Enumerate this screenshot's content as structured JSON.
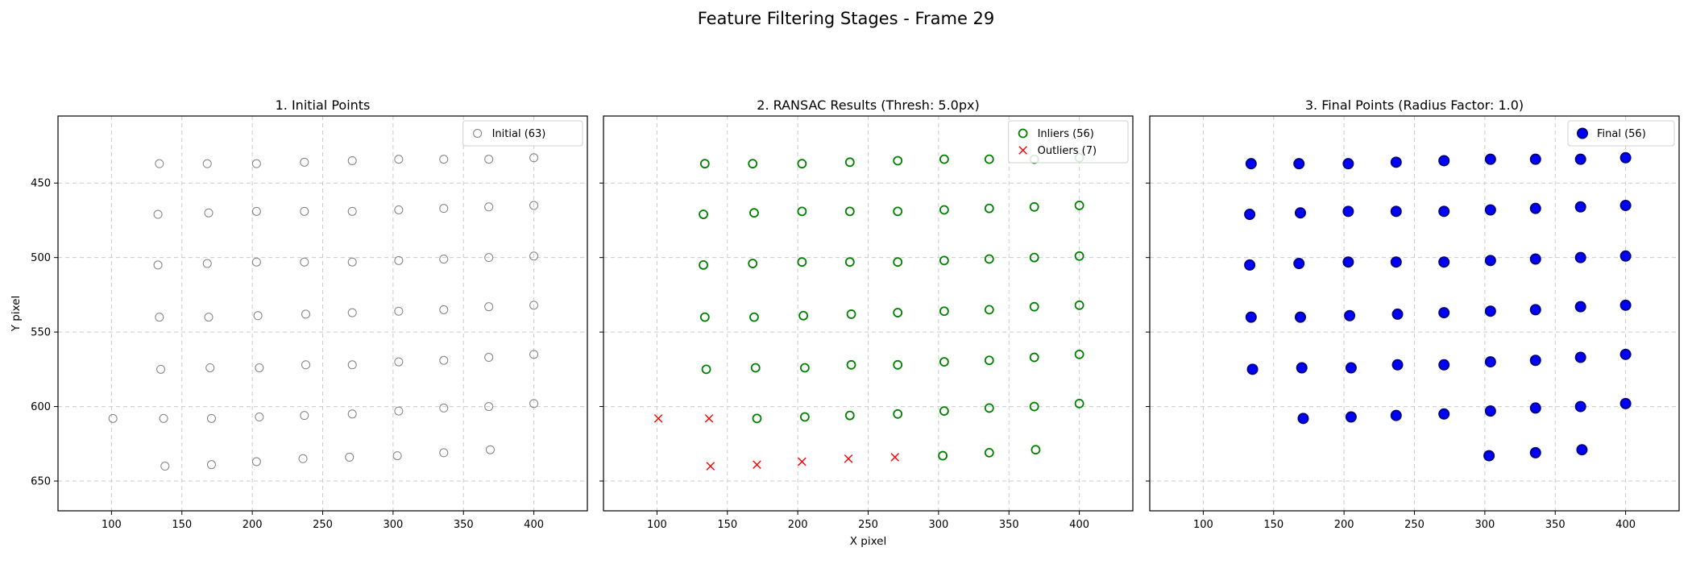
{
  "figure": {
    "title": "Feature Filtering Stages - Frame 29",
    "ylabel": "Y pixel",
    "xlabel": "X pixel"
  },
  "chart_data": [
    {
      "type": "scatter",
      "title": "1. Initial Points",
      "xlim": [
        62,
        438
      ],
      "ylim": [
        670,
        405
      ],
      "y_inverted": true,
      "grid": true,
      "xticks": [
        100,
        150,
        200,
        250,
        300,
        350,
        400
      ],
      "yticks": [
        450,
        500,
        550,
        600,
        650
      ],
      "show_yticklabels": true,
      "ylabel": "Y pixel",
      "xlabel": "",
      "legend_position": "top-right",
      "series": [
        {
          "name": "Initial (63)",
          "marker": "hollow-circle",
          "color": "#808080",
          "points": [
            [
              134,
              437
            ],
            [
              168,
              437
            ],
            [
              203,
              437
            ],
            [
              237,
              436
            ],
            [
              271,
              435
            ],
            [
              304,
              434
            ],
            [
              336,
              434
            ],
            [
              368,
              434
            ],
            [
              400,
              433
            ],
            [
              133,
              471
            ],
            [
              169,
              470
            ],
            [
              203,
              469
            ],
            [
              237,
              469
            ],
            [
              271,
              469
            ],
            [
              304,
              468
            ],
            [
              336,
              467
            ],
            [
              368,
              466
            ],
            [
              400,
              465
            ],
            [
              133,
              505
            ],
            [
              168,
              504
            ],
            [
              203,
              503
            ],
            [
              237,
              503
            ],
            [
              271,
              503
            ],
            [
              304,
              502
            ],
            [
              336,
              501
            ],
            [
              368,
              500
            ],
            [
              400,
              499
            ],
            [
              134,
              540
            ],
            [
              169,
              540
            ],
            [
              204,
              539
            ],
            [
              238,
              538
            ],
            [
              271,
              537
            ],
            [
              304,
              536
            ],
            [
              336,
              535
            ],
            [
              368,
              533
            ],
            [
              400,
              532
            ],
            [
              135,
              575
            ],
            [
              170,
              574
            ],
            [
              205,
              574
            ],
            [
              238,
              572
            ],
            [
              271,
              572
            ],
            [
              304,
              570
            ],
            [
              336,
              569
            ],
            [
              368,
              567
            ],
            [
              400,
              565
            ],
            [
              101,
              608
            ],
            [
              137,
              608
            ],
            [
              171,
              608
            ],
            [
              205,
              607
            ],
            [
              237,
              606
            ],
            [
              271,
              605
            ],
            [
              304,
              603
            ],
            [
              336,
              601
            ],
            [
              368,
              600
            ],
            [
              400,
              598
            ],
            [
              138,
              640
            ],
            [
              171,
              639
            ],
            [
              203,
              637
            ],
            [
              236,
              635
            ],
            [
              269,
              634
            ],
            [
              303,
              633
            ],
            [
              336,
              631
            ],
            [
              369,
              629
            ]
          ]
        }
      ]
    },
    {
      "type": "scatter",
      "title": "2. RANSAC Results (Thresh: 5.0px)",
      "xlim": [
        62,
        438
      ],
      "ylim": [
        670,
        405
      ],
      "y_inverted": true,
      "grid": true,
      "xticks": [
        100,
        150,
        200,
        250,
        300,
        350,
        400
      ],
      "yticks": [
        450,
        500,
        550,
        600,
        650
      ],
      "show_yticklabels": false,
      "ylabel": "",
      "xlabel": "X pixel",
      "legend_position": "top-right",
      "series": [
        {
          "name": "Inliers (56)",
          "marker": "hollow-circle",
          "color": "#008000",
          "points": [
            [
              134,
              437
            ],
            [
              168,
              437
            ],
            [
              203,
              437
            ],
            [
              237,
              436
            ],
            [
              271,
              435
            ],
            [
              304,
              434
            ],
            [
              336,
              434
            ],
            [
              368,
              434
            ],
            [
              400,
              433
            ],
            [
              133,
              471
            ],
            [
              169,
              470
            ],
            [
              203,
              469
            ],
            [
              237,
              469
            ],
            [
              271,
              469
            ],
            [
              304,
              468
            ],
            [
              336,
              467
            ],
            [
              368,
              466
            ],
            [
              400,
              465
            ],
            [
              133,
              505
            ],
            [
              168,
              504
            ],
            [
              203,
              503
            ],
            [
              237,
              503
            ],
            [
              271,
              503
            ],
            [
              304,
              502
            ],
            [
              336,
              501
            ],
            [
              368,
              500
            ],
            [
              400,
              499
            ],
            [
              134,
              540
            ],
            [
              169,
              540
            ],
            [
              204,
              539
            ],
            [
              238,
              538
            ],
            [
              271,
              537
            ],
            [
              304,
              536
            ],
            [
              336,
              535
            ],
            [
              368,
              533
            ],
            [
              400,
              532
            ],
            [
              135,
              575
            ],
            [
              170,
              574
            ],
            [
              205,
              574
            ],
            [
              238,
              572
            ],
            [
              271,
              572
            ],
            [
              304,
              570
            ],
            [
              336,
              569
            ],
            [
              368,
              567
            ],
            [
              400,
              565
            ],
            [
              171,
              608
            ],
            [
              205,
              607
            ],
            [
              237,
              606
            ],
            [
              271,
              605
            ],
            [
              304,
              603
            ],
            [
              336,
              601
            ],
            [
              368,
              600
            ],
            [
              400,
              598
            ],
            [
              303,
              633
            ],
            [
              336,
              631
            ],
            [
              369,
              629
            ]
          ]
        },
        {
          "name": "Outliers (7)",
          "marker": "x",
          "color": "#ff0000",
          "points": [
            [
              101,
              608
            ],
            [
              137,
              608
            ],
            [
              138,
              640
            ],
            [
              171,
              639
            ],
            [
              203,
              637
            ],
            [
              236,
              635
            ],
            [
              269,
              634
            ]
          ]
        }
      ]
    },
    {
      "type": "scatter",
      "title": "3. Final Points (Radius Factor: 1.0)",
      "xlim": [
        62,
        438
      ],
      "ylim": [
        670,
        405
      ],
      "y_inverted": true,
      "grid": true,
      "xticks": [
        100,
        150,
        200,
        250,
        300,
        350,
        400
      ],
      "yticks": [
        450,
        500,
        550,
        600,
        650
      ],
      "show_yticklabels": false,
      "ylabel": "",
      "xlabel": "",
      "legend_position": "top-right",
      "series": [
        {
          "name": "Final (56)",
          "marker": "filled-circle",
          "color": "#0000ff",
          "edge_color": "#00008b",
          "points": [
            [
              134,
              437
            ],
            [
              168,
              437
            ],
            [
              203,
              437
            ],
            [
              237,
              436
            ],
            [
              271,
              435
            ],
            [
              304,
              434
            ],
            [
              336,
              434
            ],
            [
              368,
              434
            ],
            [
              400,
              433
            ],
            [
              133,
              471
            ],
            [
              169,
              470
            ],
            [
              203,
              469
            ],
            [
              237,
              469
            ],
            [
              271,
              469
            ],
            [
              304,
              468
            ],
            [
              336,
              467
            ],
            [
              368,
              466
            ],
            [
              400,
              465
            ],
            [
              133,
              505
            ],
            [
              168,
              504
            ],
            [
              203,
              503
            ],
            [
              237,
              503
            ],
            [
              271,
              503
            ],
            [
              304,
              502
            ],
            [
              336,
              501
            ],
            [
              368,
              500
            ],
            [
              400,
              499
            ],
            [
              134,
              540
            ],
            [
              169,
              540
            ],
            [
              204,
              539
            ],
            [
              238,
              538
            ],
            [
              271,
              537
            ],
            [
              304,
              536
            ],
            [
              336,
              535
            ],
            [
              368,
              533
            ],
            [
              400,
              532
            ],
            [
              135,
              575
            ],
            [
              170,
              574
            ],
            [
              205,
              574
            ],
            [
              238,
              572
            ],
            [
              271,
              572
            ],
            [
              304,
              570
            ],
            [
              336,
              569
            ],
            [
              368,
              567
            ],
            [
              400,
              565
            ],
            [
              171,
              608
            ],
            [
              205,
              607
            ],
            [
              237,
              606
            ],
            [
              271,
              605
            ],
            [
              304,
              603
            ],
            [
              336,
              601
            ],
            [
              368,
              600
            ],
            [
              400,
              598
            ],
            [
              303,
              633
            ],
            [
              336,
              631
            ],
            [
              369,
              629
            ]
          ]
        }
      ]
    }
  ]
}
